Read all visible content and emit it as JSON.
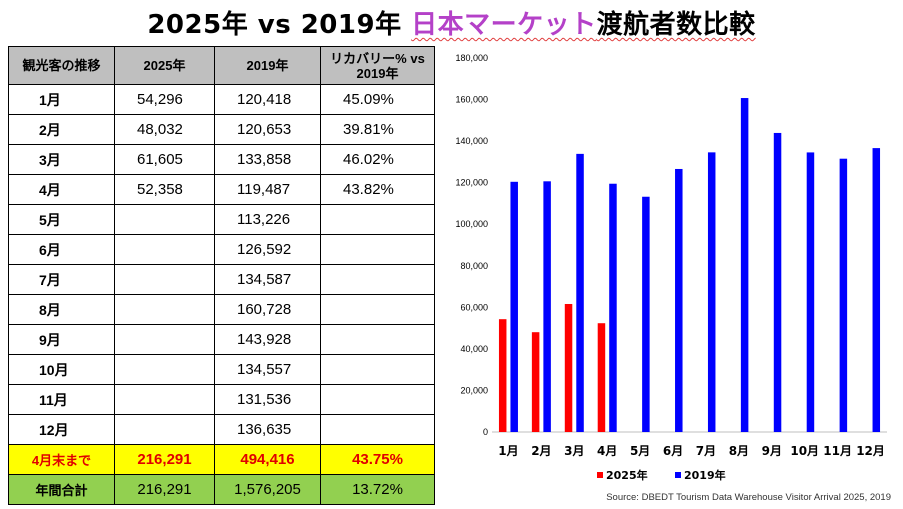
{
  "title": {
    "part1": "2025年 vs 2019年 ",
    "part2": "日本マーケット",
    "part3": "渡航者数比較"
  },
  "table": {
    "headers": [
      "観光客の推移",
      "2025年",
      "2019年",
      "リカバリー% vs 2019年"
    ],
    "rows": [
      {
        "month": "1月",
        "y2025": "54,296",
        "y2019": "120,418",
        "recovery": "45.09%"
      },
      {
        "month": "2月",
        "y2025": "48,032",
        "y2019": "120,653",
        "recovery": "39.81%"
      },
      {
        "month": "3月",
        "y2025": "61,605",
        "y2019": "133,858",
        "recovery": "46.02%"
      },
      {
        "month": "4月",
        "y2025": "52,358",
        "y2019": "119,487",
        "recovery": "43.82%"
      },
      {
        "month": "5月",
        "y2025": "",
        "y2019": "113,226",
        "recovery": ""
      },
      {
        "month": "6月",
        "y2025": "",
        "y2019": "126,592",
        "recovery": ""
      },
      {
        "month": "7月",
        "y2025": "",
        "y2019": "134,587",
        "recovery": ""
      },
      {
        "month": "8月",
        "y2025": "",
        "y2019": "160,728",
        "recovery": ""
      },
      {
        "month": "9月",
        "y2025": "",
        "y2019": "143,928",
        "recovery": ""
      },
      {
        "month": "10月",
        "y2025": "",
        "y2019": "134,557",
        "recovery": ""
      },
      {
        "month": "11月",
        "y2025": "",
        "y2019": "131,536",
        "recovery": ""
      },
      {
        "month": "12月",
        "y2025": "",
        "y2019": "136,635",
        "recovery": ""
      }
    ],
    "ytd": {
      "label": "4月末まで",
      "y2025": "216,291",
      "y2019": "494,416",
      "recovery": "43.75%"
    },
    "annual": {
      "label": "年間合計",
      "y2025": "216,291",
      "y2019": "1,576,205",
      "recovery": "13.72%"
    }
  },
  "chart_data": {
    "type": "bar",
    "categories": [
      "1月",
      "2月",
      "3月",
      "4月",
      "5月",
      "6月",
      "7月",
      "8月",
      "9月",
      "10月",
      "11月",
      "12月"
    ],
    "series": [
      {
        "name": "2025年",
        "color": "#ff0000",
        "values": [
          54296,
          48032,
          61605,
          52358,
          null,
          null,
          null,
          null,
          null,
          null,
          null,
          null
        ]
      },
      {
        "name": "2019年",
        "color": "#0000ff",
        "values": [
          120418,
          120653,
          133858,
          119487,
          113226,
          126592,
          134587,
          160728,
          143928,
          134557,
          131536,
          136635
        ]
      }
    ],
    "ylim": [
      0,
      180000
    ],
    "yticks": [
      "0",
      "20,000",
      "40,000",
      "60,000",
      "80,000",
      "100,000",
      "120,000",
      "140,000",
      "160,000",
      "180,000"
    ],
    "grid": false,
    "legend_position": "bottom"
  },
  "source": "Source: DBEDT Tourism Data Warehouse Visitor Arrival 2025, 2019"
}
